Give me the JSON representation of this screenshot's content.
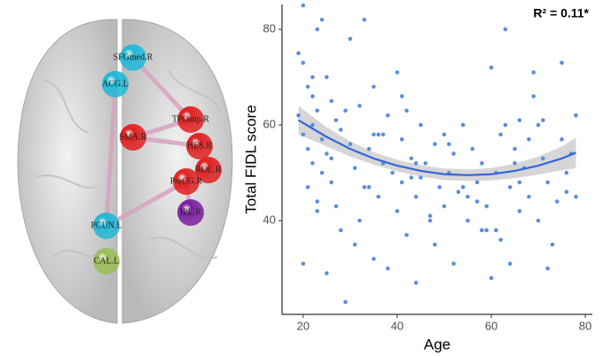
{
  "brain_network": {
    "nodes": [
      {
        "label": "SFGmed.R",
        "color": "#22b8d6"
      },
      {
        "label": "ACG.L",
        "color": "#22b8d6"
      },
      {
        "label": "TPOsup.R",
        "color": "#e02020"
      },
      {
        "label": "SMA.R",
        "color": "#e02020"
      },
      {
        "label": "HES.R",
        "color": "#e02020"
      },
      {
        "label": "ROL.R",
        "color": "#e02020"
      },
      {
        "label": "PreCG.R",
        "color": "#e02020"
      },
      {
        "label": "IPL.R",
        "color": "#7a1fa0"
      },
      {
        "label": "PCUN.L",
        "color": "#22b8d6"
      },
      {
        "label": "CAL.L",
        "color": "#9bbf5a"
      }
    ]
  },
  "chart_data": {
    "type": "scatter",
    "xlabel": "Age",
    "ylabel": "Total FIDL score",
    "annotation": "R² = 0.11*",
    "xlim": [
      15.5,
      81.5
    ],
    "ylim": [
      20.4,
      85.2
    ],
    "xticks": [
      20,
      40,
      60,
      80
    ],
    "yticks": [
      40,
      60,
      80
    ],
    "color": "#5b8fdc",
    "x": [
      19,
      19,
      20,
      20,
      20,
      21,
      21,
      21,
      22,
      22,
      22,
      23,
      23,
      23,
      24,
      24,
      24,
      25,
      25,
      25,
      26,
      26,
      27,
      27,
      28,
      28,
      29,
      30,
      30,
      31,
      32,
      32,
      33,
      34,
      34,
      35,
      35,
      36,
      36,
      37,
      38,
      38,
      39,
      40,
      40,
      41,
      41,
      42,
      42,
      43,
      44,
      44,
      45,
      45,
      46,
      47,
      48,
      48,
      49,
      50,
      50,
      51,
      52,
      52,
      53,
      54,
      55,
      55,
      56,
      57,
      58,
      58,
      59,
      60,
      60,
      61,
      62,
      62,
      63,
      64,
      64,
      65,
      66,
      66,
      67,
      68,
      68,
      69,
      70,
      70,
      71,
      72,
      73,
      74,
      75,
      75,
      76,
      77,
      78,
      78,
      20,
      23,
      29,
      31,
      35,
      41,
      44,
      54,
      59,
      63,
      66,
      69,
      72,
      22,
      26,
      33,
      37,
      43,
      47,
      51,
      57,
      61,
      65,
      71,
      76
    ],
    "values": [
      75,
      62,
      73,
      58,
      31,
      68,
      55,
      47,
      66,
      60,
      52,
      80,
      63,
      44,
      82,
      57,
      50,
      70,
      54,
      29,
      65,
      48,
      61,
      43,
      59,
      38,
      23,
      56,
      78,
      51,
      64,
      40,
      82,
      55,
      47,
      68,
      32,
      58,
      45,
      52,
      62,
      30,
      50,
      71,
      42,
      57,
      48,
      63,
      37,
      53,
      45,
      27,
      60,
      49,
      52,
      41,
      56,
      35,
      47,
      58,
      43,
      50,
      31,
      54,
      46,
      60,
      45,
      40,
      55,
      48,
      52,
      38,
      43,
      72,
      28,
      50,
      58,
      36,
      80,
      47,
      31,
      55,
      42,
      61,
      51,
      45,
      57,
      71,
      60,
      40,
      53,
      48,
      35,
      44,
      73,
      57,
      50,
      54,
      45,
      62,
      85,
      42,
      63,
      35,
      58,
      66,
      52,
      47,
      38,
      60,
      48,
      66,
      30,
      70,
      53,
      47,
      58,
      49,
      40,
      56,
      44,
      38,
      52,
      61,
      46
    ],
    "fit": {
      "color": "#3366dd",
      "band_color": "#bbbbbb",
      "x": [
        19,
        25,
        30,
        35,
        40,
        45,
        50,
        55,
        60,
        65,
        70,
        75,
        78
      ],
      "values": [
        61,
        57.5,
        55,
        53,
        51.5,
        50.4,
        49.7,
        49.5,
        49.7,
        50.4,
        51.5,
        53,
        54.2
      ],
      "lower": [
        58,
        55.5,
        53.4,
        51.7,
        50.3,
        49.2,
        48.5,
        48.3,
        48.4,
        48.9,
        49.6,
        50.5,
        51
      ],
      "upper": [
        64,
        59.5,
        56.6,
        54.3,
        52.7,
        51.6,
        50.9,
        50.7,
        51,
        51.9,
        53.4,
        55.5,
        57.4
      ]
    }
  }
}
